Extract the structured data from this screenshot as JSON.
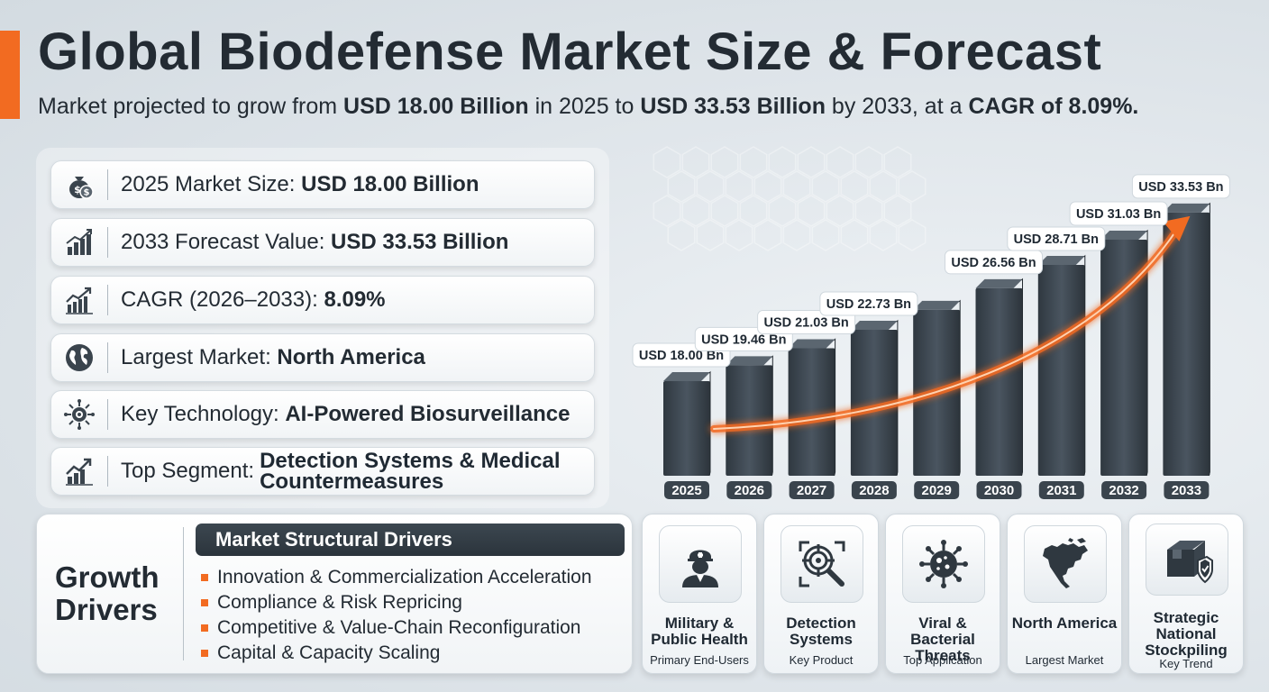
{
  "header": {
    "title": "Global Biodefense Market Size & Forecast",
    "subtitle": {
      "t1": "Market projected to grow from ",
      "b1": "USD 18.00 Billion",
      "t2": " in 2025 to ",
      "b2": "USD 33.53 Billion",
      "t3": " by 2033, at a ",
      "b3": "CAGR of 8.09%."
    }
  },
  "kpis": [
    {
      "label": "2025 Market Size: ",
      "value": "USD 18.00 Billion",
      "icon": "money-bag-icon"
    },
    {
      "label": "2033 Forecast Value: ",
      "value": "USD 33.53 Billion",
      "icon": "bar-growth-icon"
    },
    {
      "label": "CAGR (2026–2033): ",
      "value": "8.09%",
      "icon": "trend-chart-icon"
    },
    {
      "label": "Largest Market: ",
      "value": "North America",
      "icon": "globe-icon"
    },
    {
      "label": "Key Technology: ",
      "value": "AI-Powered Biosurveillance",
      "icon": "virus-target-icon"
    },
    {
      "label": "Top Segment: ",
      "value_line1": "Detection Systems & Medical",
      "value_line2": "Countermeasures",
      "icon": "growth-arrow-icon"
    }
  ],
  "growth_drivers": {
    "title_line1": "Growth",
    "title_line2": "Drivers",
    "header": "Market Structural Drivers",
    "items": [
      "Innovation & Commercialization Acceleration",
      "Compliance & Risk Repricing",
      "Competitive & Value-Chain Reconfiguration",
      "Capital & Capacity Scaling"
    ]
  },
  "chart_data": {
    "type": "bar",
    "title": "",
    "xlabel": "",
    "ylabel": "",
    "categories": [
      "2025",
      "2026",
      "2027",
      "2028",
      "2029",
      "2030",
      "2031",
      "2032",
      "2033"
    ],
    "values": [
      18.0,
      19.46,
      21.03,
      22.73,
      24.57,
      26.56,
      28.71,
      31.03,
      33.53
    ],
    "data_labels": [
      "USD 18.00 Bn",
      "USD 19.46 Bn",
      "USD 21.03 Bn",
      "USD 22.73 Bn",
      "",
      "USD 26.56 Bn",
      "USD 28.71 Bn",
      "USD 31.03 Bn",
      "USD 33.53 Bn"
    ],
    "unit": "USD Bn",
    "grid": false,
    "trend_arrow": true,
    "colors": {
      "bar": "#3a444d",
      "arrow": "#f26b21"
    }
  },
  "categories": [
    {
      "name": "Military & Public Health",
      "sub": "Primary End-Users",
      "icon": "soldier-icon"
    },
    {
      "name": "Detection Systems",
      "sub": "Key Product",
      "icon": "target-search-icon"
    },
    {
      "name": "Viral & Bacterial Threats",
      "sub": "Top Application",
      "icon": "virus-icon"
    },
    {
      "name": "North America",
      "sub": "Largest Market",
      "icon": "north-america-map-icon"
    },
    {
      "name": "Strategic National Stockpiling",
      "sub": "Key Trend",
      "icon": "box-shield-icon"
    }
  ],
  "colors": {
    "accent": "#f26b21",
    "dark": "#2b343c",
    "text": "#232b33"
  }
}
